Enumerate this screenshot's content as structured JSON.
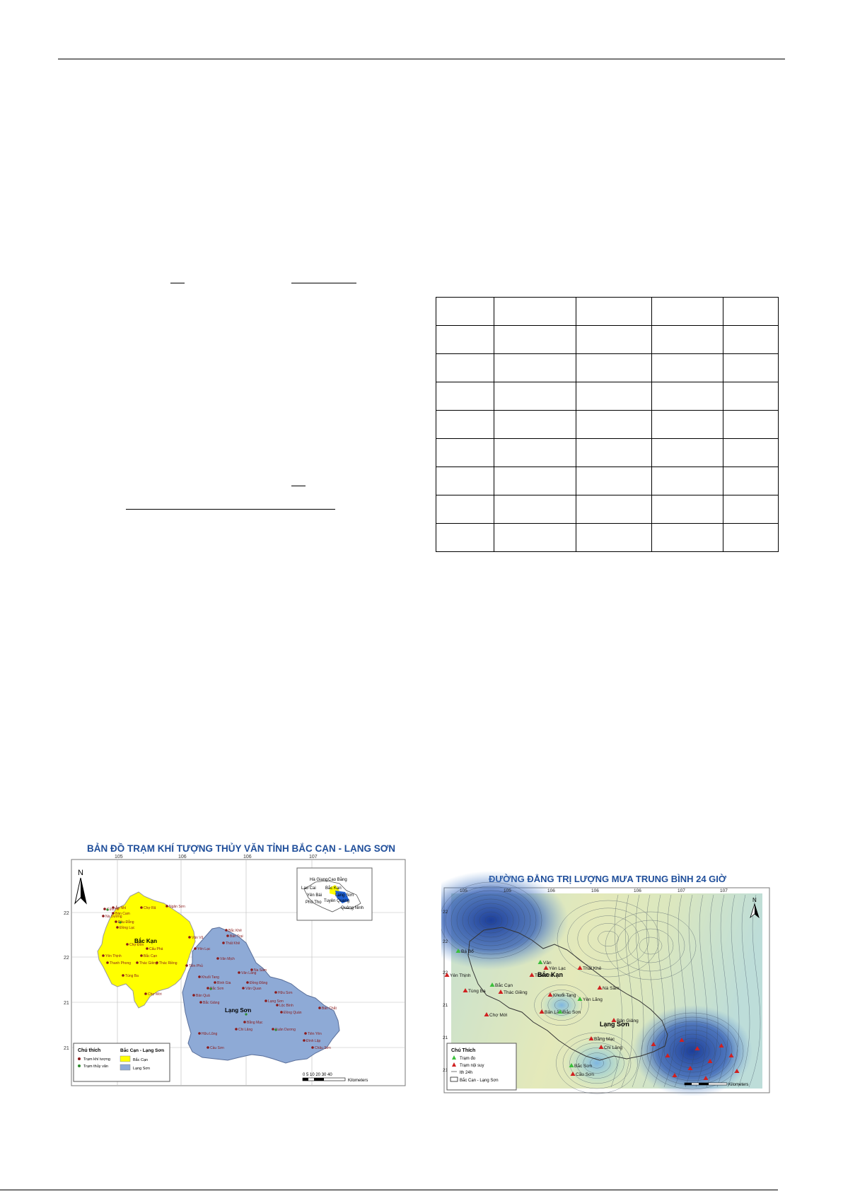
{
  "map1": {
    "title": "BẢN ĐỒ TRẠM KHÍ TƯỢNG THỦY VĂN TỈNH BẮC CẠN - LẠNG SƠN",
    "north": "N",
    "lon_ticks": [
      "105",
      "106",
      "106",
      "107"
    ],
    "lat_ticks": [
      "22",
      "22",
      "21",
      "21"
    ],
    "region_labels": [
      "Bắc Kạn",
      "Lạng Sơn"
    ],
    "inset_labels": [
      "Hà Giang",
      "Cao Bằng",
      "Lao Cai",
      "Bắc Kạn",
      "Yên Bái",
      "Lạng Sơn",
      "Tuyên Quang",
      "Phú Thọ",
      "Quảng Ninh"
    ],
    "stations_bk": [
      "Cửa Hè",
      "Ân Nhì",
      "Bản Cam",
      "Nà Dương",
      "Đầu Đẳng",
      "Đồng Lạc",
      "Chợ Rã",
      "Ngân Sơn",
      "Chợ Đồn",
      "Cẩu Phá",
      "Yên Thịnh",
      "Thanh Phong",
      "Bắc Cạn",
      "Thác Giềng",
      "Thác Riềng",
      "Tùng Ba",
      "Chợ Mới"
    ],
    "stations_ls": [
      "Vân Vũ",
      "Yên Lạc",
      "Bắc Khê",
      "Bản Trại",
      "Thất Khê",
      "Văn Mịch",
      "Tiên Phủ",
      "Khuổi Tang",
      "Bình Gia",
      "Văn Lãng",
      "Na Sầm",
      "Đồng Đăng",
      "Bắc Sơn",
      "Văn Quan",
      "Bản Quả",
      "Bắc Giảng",
      "Lạng Sơn",
      "Hữu Sơn",
      "Lộc Bình",
      "Đồng Quán",
      "Bản Chắt",
      "Bằng Mạc",
      "Chi Lăng",
      "Xuân Dương",
      "Hữu Lũng",
      "Tiên Yên",
      "Đình Lập",
      "Cầu Sơn",
      "Châu Sơn"
    ],
    "legend_title": "Chú thích",
    "legend_kt": "Trạm khí tượng",
    "legend_tv": "Trạm thủy văn",
    "legend_bk": "Bắc Cạn",
    "legend_ls": "Lạng Sơn",
    "legend_region": "Bắc Cạn - Lạng Sơn",
    "scale": "0 5 10 20 30 40",
    "scale_unit": "Kilometers",
    "colors": {
      "bk": "#ffff00",
      "ls": "#8eaad6",
      "st_kt": "#8b1a1a",
      "st_tv": "#2e8b2e",
      "title": "#1f4e9a"
    }
  },
  "map2": {
    "title": "ĐƯỜNG ĐẲNG TRỊ LƯỢNG MƯA TRUNG BÌNH 24 GIỜ",
    "north": "N",
    "lon_ticks": [
      "105",
      "105",
      "106",
      "106",
      "106",
      "107",
      "107"
    ],
    "lat_ticks": [
      "22",
      "22",
      "22",
      "21",
      "21",
      "21"
    ],
    "region_labels": [
      "Bắc Kạn",
      "Lạng Sơn"
    ],
    "stations": [
      "Bá Bổ",
      "Yên Thịnh",
      "Tùng Ba",
      "Bắc Cạn",
      "Thác Giềng",
      "Chợ Mới",
      "Vân",
      "Yên Lạc",
      "Thất Khê",
      "Trần Phú",
      "Khuổi Tang",
      "Yên Lãng",
      "Nà Sầm",
      "Bản Lăm",
      "Bắc Sơn",
      "Bản Giảng",
      "Bằng Mạc",
      "Chi Lăng",
      "Bắc Sơn",
      "Cầu Sơn"
    ],
    "legend_title": "Chú Thích",
    "legend_do": "Trạm đo",
    "legend_nsuy": "Trạm nội suy",
    "legend_iso": "lth 24h",
    "legend_region": "Bắc Cạn - Lạng Sơn",
    "scale_unit": "Kilometers",
    "colors": {
      "low": "#1d3f9a",
      "high": "#f4f3a0",
      "mid": "#9ad7d2",
      "title": "#1f4e9a"
    }
  }
}
